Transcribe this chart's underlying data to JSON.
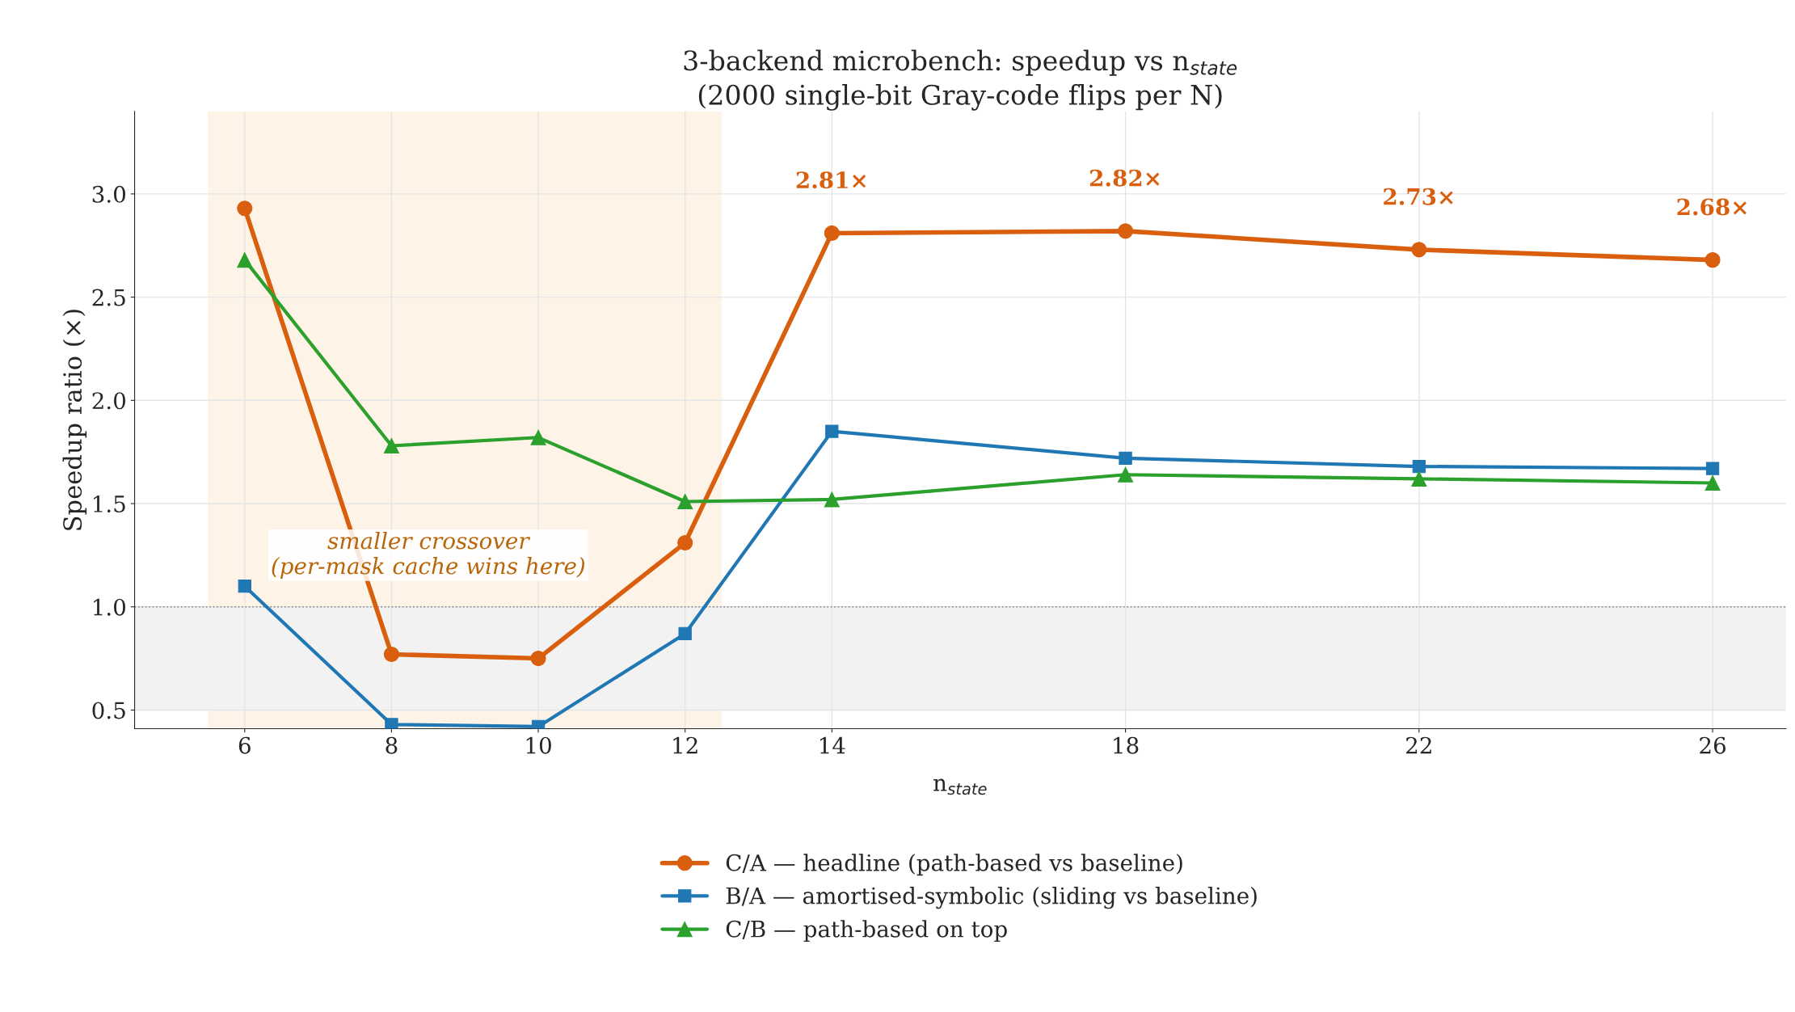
{
  "chart_data": {
    "type": "line",
    "title": "3-backend microbench: speedup vs n$_{state}$\n(2000 single-bit Gray-code flips per N)",
    "xlabel": "n$_{state}$",
    "ylabel": "Speedup ratio (×)",
    "x": [
      6,
      8,
      10,
      12,
      14,
      18,
      22,
      26
    ],
    "series": [
      {
        "name": "C/A — headline (path-based vs baseline)",
        "color": "#d95f0e",
        "marker": "circle",
        "values": [
          2.93,
          0.77,
          0.75,
          1.31,
          2.81,
          2.82,
          2.73,
          2.68
        ],
        "value_labels": [
          null,
          null,
          null,
          null,
          "2.81×",
          "2.82×",
          "2.73×",
          "2.68×"
        ]
      },
      {
        "name": "B/A — amortised-symbolic (sliding vs baseline)",
        "color": "#1f77b4",
        "marker": "square",
        "values": [
          1.1,
          0.43,
          0.42,
          0.87,
          1.85,
          1.72,
          1.68,
          1.67
        ]
      },
      {
        "name": "C/B — path-based on top",
        "color": "#2ca02c",
        "marker": "triangle",
        "values": [
          2.68,
          1.78,
          1.82,
          1.51,
          1.52,
          1.64,
          1.62,
          1.6
        ]
      }
    ],
    "xlim": [
      4.5,
      27
    ],
    "ylim": [
      0.41,
      3.4
    ],
    "xticks": [
      6,
      8,
      10,
      12,
      14,
      18,
      22,
      26
    ],
    "yticks": [
      0.5,
      {
        "value": 1,
        "label": "1.0"
      },
      1.5,
      {
        "value": 2,
        "label": "2.0"
      },
      2.5,
      {
        "value": 3,
        "label": "3.0"
      }
    ],
    "ref_lines": [
      {
        "axis": "y",
        "value": 1.0,
        "color": "#808080",
        "line_style": "dotted"
      }
    ],
    "bands": [
      {
        "axis": "x",
        "from": 5.5,
        "to": 12.5,
        "color": "#fdf3e6",
        "label": "smaller crossover\n(per-mask cache wins here)"
      },
      {
        "axis": "y",
        "from": 0.5,
        "to": 1.0,
        "color": "#f2f2f2"
      }
    ],
    "grid": true,
    "legend": "bottom",
    "line_style": "solid"
  }
}
